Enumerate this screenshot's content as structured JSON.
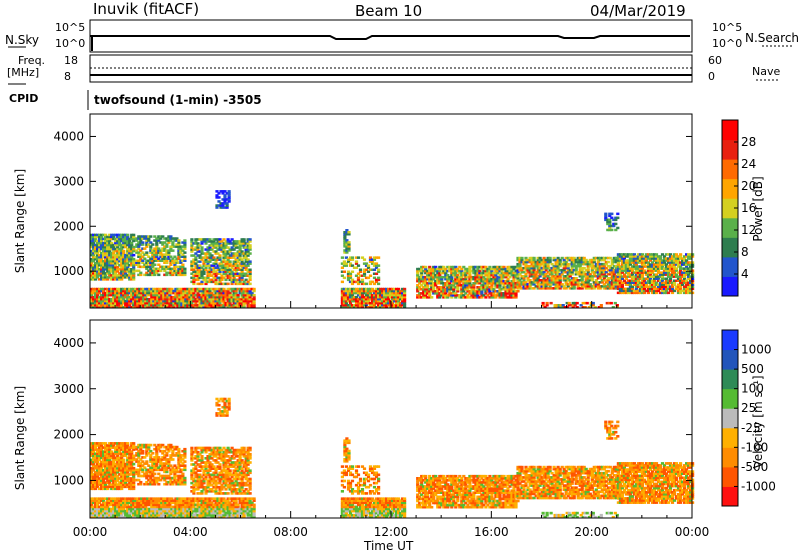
{
  "header": {
    "station": "Inuvik (fitACF)",
    "beam": "Beam 10",
    "date": "04/Mar/2019"
  },
  "top_panel": {
    "left_label": "N.Sky",
    "left_ticks": [
      "10^5",
      "10^0"
    ],
    "right_label": "N.Search",
    "right_ticks": [
      "10^5",
      "10^0"
    ]
  },
  "freq_panel": {
    "left_label_line1": "Freq.",
    "left_label_line2": "[MHz]",
    "left_ticks": [
      "18",
      "8"
    ],
    "right_label": "Nave",
    "right_ticks": [
      "60",
      "0"
    ],
    "cpid_label": "CPID",
    "cpid_value": "twofsound (1-min) -3505"
  },
  "colors": {
    "power_scale": [
      "#1a1aff",
      "#2255cc",
      "#2e7d4f",
      "#5ab04a",
      "#d4d020",
      "#ffa500",
      "#ff6a00",
      "#e82010",
      "#ff0000"
    ],
    "velocity_scale": [
      "#ff1010",
      "#ff5500",
      "#ff8c00",
      "#ffb000",
      "#bbbbbb",
      "#55bb33",
      "#2e8b57",
      "#2255bb",
      "#1a3aff"
    ]
  },
  "chart_data": [
    {
      "type": "heatmap",
      "title": "",
      "xlabel": "",
      "ylabel": "Slant Range [km]",
      "xlim": [
        "00:00",
        "24:00"
      ],
      "ylim": [
        180,
        4500
      ],
      "yticks": [
        "1000",
        "2000",
        "3000",
        "4000"
      ],
      "colorbar_label": "Power [dB]",
      "colorbar_ticks": [
        "4",
        "8",
        "12",
        "16",
        "20",
        "24",
        "28"
      ],
      "colorbar_range": [
        0,
        32
      ]
    },
    {
      "type": "heatmap",
      "title": "",
      "xlabel": "Time UT",
      "ylabel": "Slant Range [km]",
      "xticks": [
        "00:00",
        "04:00",
        "08:00",
        "12:00",
        "16:00",
        "20:00",
        "00:00"
      ],
      "xlim": [
        "00:00",
        "24:00"
      ],
      "ylim": [
        180,
        4500
      ],
      "yticks": [
        "1000",
        "2000",
        "3000",
        "4000"
      ],
      "colorbar_label": "Velocity [m s⁻¹]",
      "colorbar_ticks": [
        "1000",
        "500",
        "100",
        "25",
        "-25",
        "-100",
        "-500",
        "-1000"
      ]
    }
  ]
}
